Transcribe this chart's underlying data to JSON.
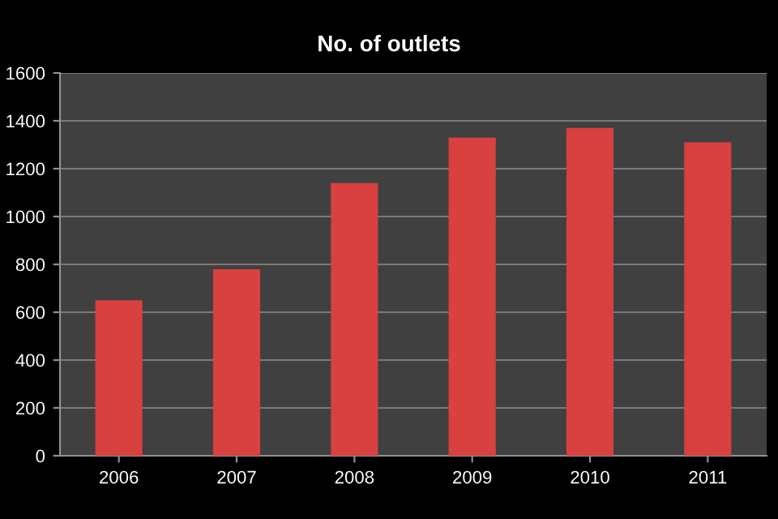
{
  "chart_data": {
    "type": "bar",
    "title": "No. of outlets",
    "categories": [
      "2006",
      "2007",
      "2008",
      "2009",
      "2010",
      "2011"
    ],
    "values": [
      650,
      780,
      1140,
      1330,
      1370,
      1310
    ],
    "color": "#d94040",
    "ylim": [
      0,
      1600
    ],
    "yticks": [
      0,
      200,
      400,
      600,
      800,
      1000,
      1200,
      1400,
      1600
    ],
    "grid": "y",
    "legend": false
  }
}
